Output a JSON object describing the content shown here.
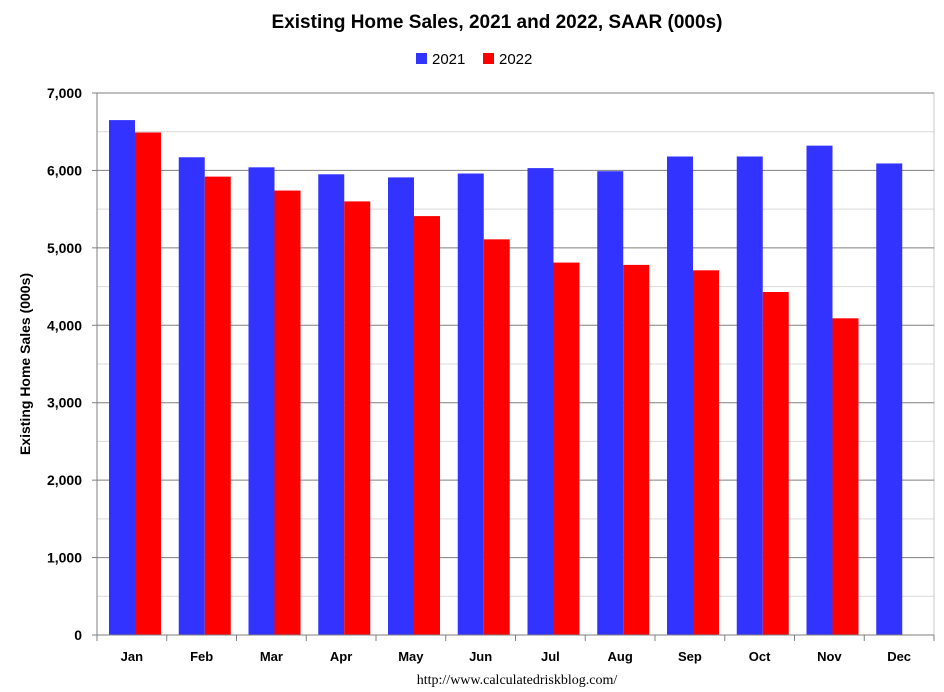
{
  "chart_data": {
    "type": "bar",
    "title": "Existing Home Sales,  2021 and 2022, SAAR (000s)",
    "xlabel": "",
    "ylabel": "Existing Home Sales (000s)",
    "categories": [
      "Jan",
      "Feb",
      "Mar",
      "Apr",
      "May",
      "Jun",
      "Jul",
      "Aug",
      "Sep",
      "Oct",
      "Nov",
      "Dec"
    ],
    "series": [
      {
        "name": "2021",
        "color": "#3333ff",
        "values": [
          6650,
          6170,
          6040,
          5950,
          5910,
          5960,
          6030,
          5990,
          6180,
          6180,
          6320,
          6090
        ]
      },
      {
        "name": "2022",
        "color": "#ff0000",
        "values": [
          6490,
          5920,
          5740,
          5600,
          5410,
          5110,
          4810,
          4780,
          4710,
          4430,
          4090,
          null
        ]
      }
    ],
    "ylim": [
      0,
      7000
    ],
    "yticks": [
      "0",
      "1,000",
      "2,000",
      "3,000",
      "4,000",
      "5,000",
      "6,000",
      "7,000"
    ],
    "grid": true,
    "legend_position": "top-center",
    "source": "http://www.calculatedriskblog.com/"
  }
}
